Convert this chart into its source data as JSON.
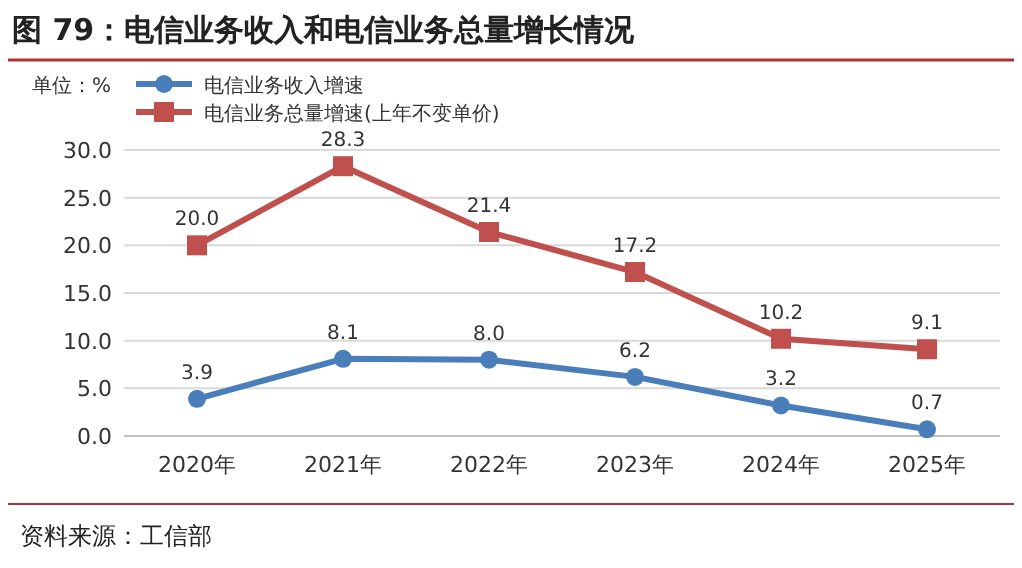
{
  "chart_data": {
    "type": "line",
    "title": "图 79：电信业务收入和电信业务总量增长情况",
    "ylabel": "单位：%",
    "categories": [
      "2020年",
      "2021年",
      "2022年",
      "2023年",
      "2024年",
      "2025年"
    ],
    "series": [
      {
        "name": "电信业务收入增速",
        "color": "#4a7ebb",
        "marker": "circle",
        "values": [
          3.9,
          8.1,
          8.0,
          6.2,
          3.2,
          0.7
        ],
        "value_labels": [
          "3.9",
          "8.1",
          "8.0",
          "6.2",
          "3.2",
          "0.7"
        ]
      },
      {
        "name": "电信业务总量增速(上年不变单价)",
        "color": "#c0504d",
        "marker": "square",
        "values": [
          20.0,
          28.3,
          21.4,
          17.2,
          10.2,
          9.1
        ],
        "value_labels": [
          "20.0",
          "28.3",
          "21.4",
          "17.2",
          "10.2",
          "9.1"
        ]
      }
    ],
    "ylim": [
      0,
      30
    ],
    "yticks": [
      {
        "value": 0,
        "label": "0.0"
      },
      {
        "value": 5,
        "label": "5.0"
      },
      {
        "value": 10,
        "label": "10.0"
      },
      {
        "value": 15,
        "label": "15.0"
      },
      {
        "value": 20,
        "label": "20.0"
      },
      {
        "value": 25,
        "label": "25.0"
      },
      {
        "value": 30,
        "label": "30.0"
      }
    ],
    "grid": "y",
    "legend": "top left",
    "annotations": [
      "资料来源：工信部"
    ]
  }
}
